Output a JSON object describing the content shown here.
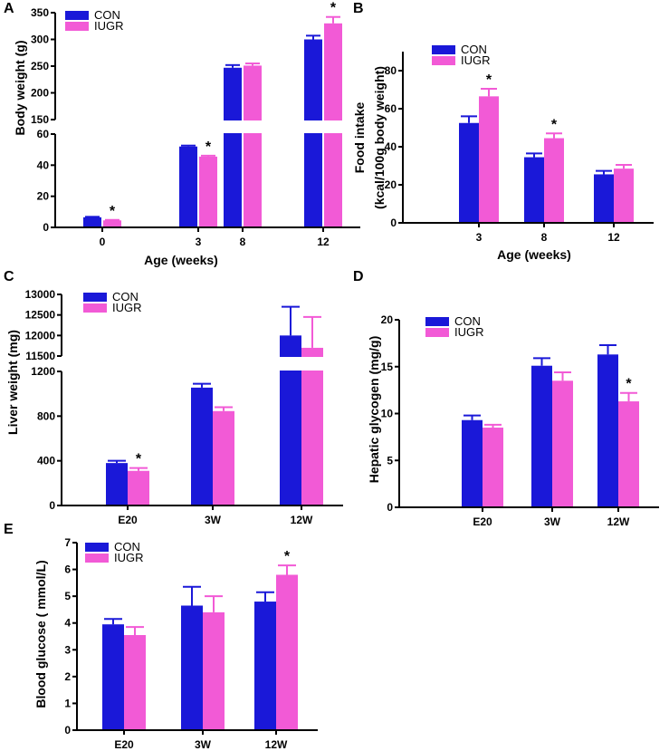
{
  "colors": {
    "con": "#1a18d8",
    "iugr": "#f25ad6",
    "axis": "#000000"
  },
  "chart_data": [
    {
      "panel": "A",
      "type": "bar",
      "title": "",
      "xlabel": "Age (weeks)",
      "ylabel": "Body weight (g)",
      "legend": [
        "CON",
        "IUGR"
      ],
      "legend_position": "top-left",
      "broken_axis": true,
      "ylim_lower": [
        0,
        60
      ],
      "ylim_upper": [
        150,
        350
      ],
      "yticks_lower": [
        0,
        20,
        40,
        60
      ],
      "yticks_upper": [
        150,
        200,
        250,
        300,
        350
      ],
      "categories": [
        "0",
        "3",
        "8",
        "12"
      ],
      "series": [
        {
          "name": "CON",
          "values": [
            6.5,
            52,
            247,
            300
          ],
          "errors": [
            0.3,
            0.6,
            5,
            7
          ]
        },
        {
          "name": "IUGR",
          "values": [
            4.5,
            45.5,
            251,
            330
          ],
          "errors": [
            0.3,
            0.6,
            4,
            12
          ]
        }
      ],
      "significance": [
        {
          "category": "0",
          "label": "*"
        },
        {
          "category": "3",
          "label": "*"
        },
        {
          "category": "12",
          "label": "*"
        }
      ]
    },
    {
      "panel": "B",
      "type": "bar",
      "title": "",
      "xlabel": "Age (weeks)",
      "ylabel_lines": [
        "Food intake",
        "(kcal/100g body weight)"
      ],
      "legend": [
        "CON",
        "IUGR"
      ],
      "legend_position": "top",
      "broken_axis": false,
      "ylim": [
        0,
        90
      ],
      "yticks": [
        0,
        20,
        40,
        60,
        80
      ],
      "categories": [
        "3",
        "8",
        "12"
      ],
      "series": [
        {
          "name": "CON",
          "values": [
            52.5,
            34.5,
            25.5
          ],
          "errors": [
            3.5,
            2,
            1.8
          ]
        },
        {
          "name": "IUGR",
          "values": [
            66.5,
            44.5,
            28.5
          ],
          "errors": [
            4,
            2.5,
            2
          ]
        }
      ],
      "significance": [
        {
          "category": "3",
          "label": "*"
        },
        {
          "category": "8",
          "label": "*"
        }
      ]
    },
    {
      "panel": "C",
      "type": "bar",
      "title": "",
      "xlabel": "",
      "ylabel": "Liver weight (mg)",
      "legend": [
        "CON",
        "IUGR"
      ],
      "legend_position": "top-left",
      "broken_axis": true,
      "ylim_lower": [
        0,
        1200
      ],
      "ylim_upper": [
        11500,
        13000
      ],
      "yticks_lower": [
        0,
        400,
        800,
        1200
      ],
      "yticks_upper": [
        11500,
        12000,
        12500,
        13000
      ],
      "categories": [
        "E20",
        "3W",
        "12W"
      ],
      "series": [
        {
          "name": "CON",
          "values": [
            380,
            1055,
            12000
          ],
          "errors": [
            20,
            35,
            700
          ]
        },
        {
          "name": "IUGR",
          "values": [
            310,
            845,
            11700
          ],
          "errors": [
            25,
            35,
            750
          ]
        }
      ],
      "significance": [
        {
          "category": "E20",
          "label": "*"
        }
      ]
    },
    {
      "panel": "D",
      "type": "bar",
      "title": "",
      "xlabel": "",
      "ylabel": "Hepatic glycogen (mg/g)",
      "legend": [
        "CON",
        "IUGR"
      ],
      "legend_position": "top",
      "broken_axis": false,
      "ylim": [
        0,
        20
      ],
      "yticks": [
        0,
        5,
        10,
        15,
        20
      ],
      "categories": [
        "E20",
        "3W",
        "12W"
      ],
      "series": [
        {
          "name": "CON",
          "values": [
            9.3,
            15.1,
            16.3
          ],
          "errors": [
            0.5,
            0.8,
            1.0
          ]
        },
        {
          "name": "IUGR",
          "values": [
            8.5,
            13.5,
            11.3
          ],
          "errors": [
            0.3,
            0.9,
            0.9
          ]
        }
      ],
      "significance": [
        {
          "category": "12W",
          "label": "*"
        }
      ]
    },
    {
      "panel": "E",
      "type": "bar",
      "title": "",
      "xlabel": "",
      "ylabel": "Blood glucose ( mmol/L)",
      "legend": [
        "CON",
        "IUGR"
      ],
      "legend_position": "top-left",
      "broken_axis": false,
      "ylim": [
        0,
        7
      ],
      "yticks": [
        0,
        1,
        2,
        3,
        4,
        5,
        6,
        7
      ],
      "categories": [
        "E20",
        "3W",
        "12W"
      ],
      "series": [
        {
          "name": "CON",
          "values": [
            3.95,
            4.65,
            4.8
          ],
          "errors": [
            0.2,
            0.7,
            0.35
          ]
        },
        {
          "name": "IUGR",
          "values": [
            3.55,
            4.4,
            5.8
          ],
          "errors": [
            0.3,
            0.6,
            0.35
          ]
        }
      ],
      "significance": [
        {
          "category": "12W",
          "label": "*"
        }
      ]
    }
  ]
}
